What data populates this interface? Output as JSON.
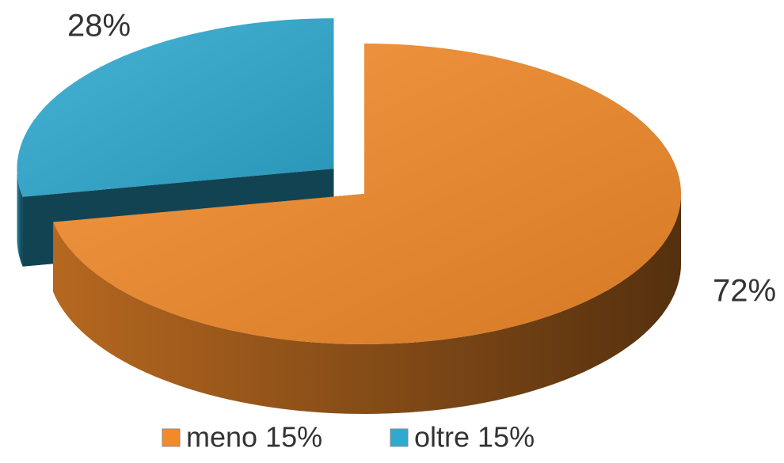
{
  "chart_data": {
    "type": "pie",
    "categories": [
      "meno 15%",
      "oltre 15%"
    ],
    "values": [
      72,
      28
    ],
    "value_labels": [
      "72%",
      "28%"
    ],
    "colors": [
      "#f28a2a",
      "#2ea9d0"
    ],
    "legend": "bottom"
  }
}
